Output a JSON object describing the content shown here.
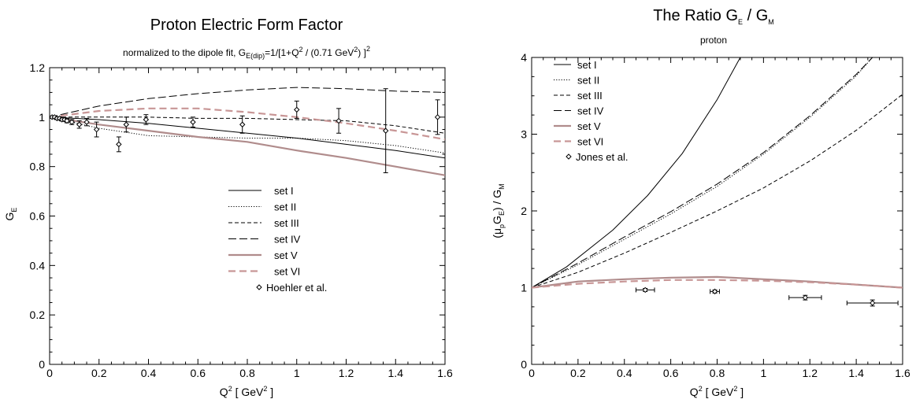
{
  "chart_data": [
    {
      "type": "line",
      "title": "Proton Electric Form Factor",
      "subtitle": {
        "pre": "normalized to the dipole fit, G",
        "sub": "E(dip)",
        "mid1": "=1/[1+Q",
        "sup1": "2",
        "mid2": " / (0.71 GeV",
        "sup2": "2",
        "mid3": ") ]",
        "sup3": "2"
      },
      "xlabel": {
        "base": "Q",
        "sup": "2",
        "rest": " [ GeV",
        "sup2": "2",
        "end": " ]"
      },
      "ylabel": {
        "base": "G",
        "sub": "E"
      },
      "xlim": [
        0,
        1.6
      ],
      "ylim": [
        0,
        1.2
      ],
      "xticks": [
        "0",
        "0.2",
        "0.4",
        "0.6",
        "0.8",
        "1",
        "1.2",
        "1.4",
        "1.6"
      ],
      "yticks": [
        "0",
        "0.2",
        "0.4",
        "0.6",
        "0.8",
        "1",
        "1.2"
      ],
      "legend_position": "lower-right",
      "series": [
        {
          "name": "set I",
          "color": "#000000",
          "style": "solid",
          "x": [
            0,
            0.2,
            0.4,
            0.6,
            0.8,
            1.0,
            1.2,
            1.4,
            1.6
          ],
          "y": [
            1.0,
            0.99,
            0.975,
            0.955,
            0.935,
            0.915,
            0.89,
            0.865,
            0.835
          ]
        },
        {
          "name": "set II",
          "color": "#000000",
          "style": "dotted",
          "x": [
            0,
            0.2,
            0.4,
            0.6,
            0.8,
            1.0,
            1.2,
            1.4,
            1.6
          ],
          "y": [
            1.0,
            0.955,
            0.925,
            0.92,
            0.915,
            0.915,
            0.905,
            0.885,
            0.855
          ]
        },
        {
          "name": "set III",
          "color": "#000000",
          "style": "dashed-short",
          "x": [
            0,
            0.2,
            0.4,
            0.6,
            0.8,
            1.0,
            1.2,
            1.4,
            1.6
          ],
          "y": [
            1.0,
            1.0,
            1.0,
            0.995,
            0.995,
            0.99,
            0.985,
            0.965,
            0.935
          ]
        },
        {
          "name": "set IV",
          "color": "#000000",
          "style": "dashed-long",
          "x": [
            0,
            0.2,
            0.4,
            0.6,
            0.8,
            1.0,
            1.2,
            1.4,
            1.6
          ],
          "y": [
            1.0,
            1.045,
            1.075,
            1.095,
            1.11,
            1.12,
            1.115,
            1.105,
            1.1
          ]
        },
        {
          "name": "set V",
          "color": "#b08c8c",
          "style": "solid-thick",
          "x": [
            0,
            0.2,
            0.4,
            0.6,
            0.8,
            1.0,
            1.2,
            1.4,
            1.6
          ],
          "y": [
            1.0,
            0.97,
            0.945,
            0.92,
            0.9,
            0.865,
            0.835,
            0.8,
            0.765
          ]
        },
        {
          "name": "set VI",
          "color": "#c89696",
          "style": "dashed-thick",
          "x": [
            0,
            0.2,
            0.4,
            0.6,
            0.8,
            1.0,
            1.2,
            1.4,
            1.6
          ],
          "y": [
            1.0,
            1.025,
            1.035,
            1.035,
            1.02,
            1.0,
            0.975,
            0.945,
            0.91
          ]
        }
      ],
      "points": {
        "name": "Hoehler et al.",
        "x": [
          0.01,
          0.02,
          0.03,
          0.04,
          0.05,
          0.06,
          0.07,
          0.09,
          0.12,
          0.15,
          0.19,
          0.28,
          0.31,
          0.39,
          0.58,
          0.78,
          1.0,
          1.17,
          1.36,
          1.57
        ],
        "y": [
          1.0,
          1.0,
          0.995,
          0.995,
          0.99,
          0.99,
          0.985,
          0.98,
          0.97,
          0.98,
          0.95,
          0.89,
          0.97,
          0.99,
          0.98,
          0.97,
          1.03,
          0.985,
          0.945,
          1.0
        ],
        "err": [
          0.005,
          0.005,
          0.005,
          0.006,
          0.006,
          0.007,
          0.008,
          0.01,
          0.015,
          0.015,
          0.03,
          0.03,
          0.03,
          0.02,
          0.02,
          0.035,
          0.035,
          0.05,
          0.17,
          0.07
        ]
      }
    },
    {
      "type": "line",
      "title": {
        "base": "The Ratio G",
        "sub1": "E",
        "mid": " / G",
        "sub2": "M"
      },
      "subtitle": "proton",
      "xlabel": {
        "base": "Q",
        "sup": "2",
        "rest": " [ GeV",
        "sup2": "2",
        "end": " ]"
      },
      "ylabel": {
        "p1": "(μ",
        "s1": "p",
        "p2": "G",
        "s2": "E",
        "p3": ") / G",
        "s3": "M"
      },
      "xlim": [
        0,
        1.6
      ],
      "ylim": [
        0,
        4
      ],
      "xticks": [
        "0",
        "0.2",
        "0.4",
        "0.6",
        "0.8",
        "1",
        "1.2",
        "1.4",
        "1.6"
      ],
      "yticks": [
        "0",
        "1",
        "2",
        "3",
        "4"
      ],
      "legend_position": "top-left",
      "series": [
        {
          "name": "set I",
          "color": "#000000",
          "style": "solid",
          "x": [
            0,
            0.15,
            0.35,
            0.5,
            0.65,
            0.8,
            0.9,
            0.94
          ],
          "y": [
            1.0,
            1.27,
            1.75,
            2.2,
            2.75,
            3.45,
            4.0,
            4.2
          ]
        },
        {
          "name": "set II",
          "color": "#000000",
          "style": "dotted",
          "x": [
            0,
            0.2,
            0.4,
            0.6,
            0.8,
            1.0,
            1.2,
            1.4,
            1.47,
            1.5
          ],
          "y": [
            1.0,
            1.3,
            1.63,
            1.96,
            2.32,
            2.74,
            3.22,
            3.76,
            4.0,
            4.1
          ]
        },
        {
          "name": "set III",
          "color": "#000000",
          "style": "dashed-short",
          "x": [
            0,
            0.2,
            0.4,
            0.6,
            0.8,
            1.0,
            1.2,
            1.4,
            1.6
          ],
          "y": [
            1.0,
            1.2,
            1.45,
            1.72,
            2.0,
            2.3,
            2.65,
            3.05,
            3.52
          ]
        },
        {
          "name": "set IV",
          "color": "#000000",
          "style": "dashed-long",
          "x": [
            0,
            0.2,
            0.4,
            0.6,
            0.8,
            1.0,
            1.2,
            1.4,
            1.47,
            1.5
          ],
          "y": [
            1.0,
            1.32,
            1.66,
            1.99,
            2.35,
            2.76,
            3.24,
            3.78,
            4.0,
            4.1
          ]
        },
        {
          "name": "set V",
          "color": "#b08c8c",
          "style": "solid-thick",
          "x": [
            0,
            0.2,
            0.4,
            0.6,
            0.8,
            1.0,
            1.2,
            1.4,
            1.6
          ],
          "y": [
            1.0,
            1.08,
            1.11,
            1.13,
            1.14,
            1.11,
            1.08,
            1.04,
            1.0
          ]
        },
        {
          "name": "set VI",
          "color": "#c89696",
          "style": "dashed-thick",
          "x": [
            0,
            0.2,
            0.4,
            0.6,
            0.8,
            1.0,
            1.2,
            1.4,
            1.6
          ],
          "y": [
            1.0,
            1.05,
            1.08,
            1.1,
            1.1,
            1.09,
            1.07,
            1.04,
            1.0
          ]
        }
      ],
      "points": {
        "name": "Jones et al.",
        "x": [
          0.49,
          0.79,
          1.18,
          1.47
        ],
        "y": [
          0.97,
          0.95,
          0.87,
          0.8
        ],
        "yerr": [
          0.02,
          0.02,
          0.03,
          0.04
        ],
        "xerr": [
          0.04,
          0.02,
          0.07,
          0.11
        ]
      }
    }
  ]
}
